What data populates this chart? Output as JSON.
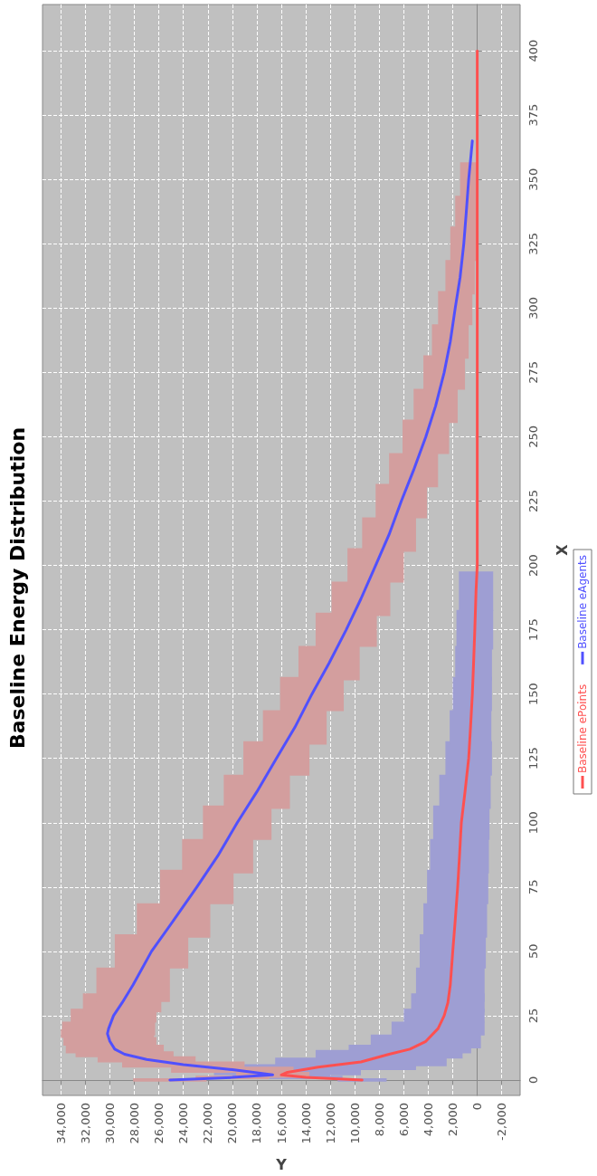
{
  "chart_data": {
    "type": "line",
    "title": "Baseline Energy Distribution",
    "xlabel": "Y",
    "ylabel": "X",
    "xlim": [
      35500,
      -3500
    ],
    "ylim": [
      -6,
      418
    ],
    "xticks": [
      {
        "value": 34000,
        "label": "34,000"
      },
      {
        "value": 32000,
        "label": "32,000"
      },
      {
        "value": 30000,
        "label": "30,000"
      },
      {
        "value": 28000,
        "label": "28,000"
      },
      {
        "value": 26000,
        "label": "26,000"
      },
      {
        "value": 24000,
        "label": "24,000"
      },
      {
        "value": 22000,
        "label": "22,000"
      },
      {
        "value": 20000,
        "label": "20,000"
      },
      {
        "value": 18000,
        "label": "18,000"
      },
      {
        "value": 16000,
        "label": "16,000"
      },
      {
        "value": 14000,
        "label": "14,000"
      },
      {
        "value": 12000,
        "label": "12,000"
      },
      {
        "value": 10000,
        "label": "10,000"
      },
      {
        "value": 8000,
        "label": "8,000"
      },
      {
        "value": 6000,
        "label": "6,000"
      },
      {
        "value": 4000,
        "label": "4,000"
      },
      {
        "value": 2000,
        "label": "2,000"
      },
      0,
      {
        "value": -2000,
        "label": "-2,000"
      }
    ],
    "yticks": [
      0,
      25,
      50,
      75,
      100,
      125,
      150,
      175,
      200,
      225,
      250,
      275,
      300,
      325,
      350,
      375,
      400
    ],
    "grid": true,
    "legend": "right",
    "marker": "none",
    "line_style": "solid",
    "series": [
      {
        "name": "Baseline ePoints",
        "color": "#ff5050",
        "values": [
          0,
          1,
          2,
          3,
          5,
          7,
          10,
          12,
          15,
          20,
          25,
          30,
          37,
          50,
          62,
          75,
          87,
          100,
          112,
          125,
          137,
          150,
          162,
          175,
          190,
          200,
          250,
          300,
          350,
          400
        ],
        "x": [
          9400,
          14000,
          16000,
          15500,
          13000,
          9500,
          7200,
          5500,
          4200,
          3200,
          2700,
          2400,
          2200,
          2000,
          1800,
          1600,
          1450,
          1300,
          1000,
          700,
          550,
          400,
          300,
          200,
          100,
          0,
          0,
          0,
          0,
          0
        ],
        "xerrors": [
          [
            7400,
            11400
          ],
          [
            11000,
            17000
          ],
          [
            12000,
            20000
          ],
          [
            9500,
            21500
          ],
          [
            5000,
            21000
          ],
          [
            2500,
            16500
          ],
          [
            1200,
            13200
          ],
          [
            500,
            10500
          ],
          [
            -300,
            8700
          ],
          [
            -600,
            7000
          ],
          [
            -600,
            6000
          ],
          [
            -600,
            5400
          ],
          [
            -600,
            5000
          ],
          [
            -700,
            4700
          ],
          [
            -800,
            4400
          ],
          [
            -900,
            4100
          ],
          [
            -950,
            3850
          ],
          [
            -1000,
            3600
          ],
          [
            -1100,
            3100
          ],
          [
            -1200,
            2600
          ],
          [
            -1150,
            2250
          ],
          [
            -1200,
            2000
          ],
          [
            -1200,
            1800
          ],
          [
            -1300,
            1700
          ],
          [
            -1300,
            1500
          ],
          null,
          null,
          null,
          null,
          null
        ]
      },
      {
        "name": "Baseline eAgents",
        "color": "#5050ff",
        "values": [
          0,
          1,
          2,
          4,
          6,
          8,
          10,
          12,
          15,
          18,
          20,
          25,
          30,
          37,
          50,
          62,
          75,
          87,
          100,
          112,
          125,
          137,
          150,
          162,
          175,
          187,
          200,
          212,
          225,
          237,
          250,
          262,
          275,
          287,
          300,
          312,
          325,
          337,
          350,
          365
        ],
        "x": [
          25100,
          20000,
          16700,
          20000,
          24000,
          27000,
          28800,
          29600,
          30000,
          30200,
          30100,
          29700,
          29000,
          28100,
          26600,
          24800,
          22900,
          21200,
          19600,
          18000,
          16400,
          14900,
          13500,
          12100,
          10700,
          9500,
          8300,
          7200,
          6200,
          5200,
          4200,
          3400,
          2700,
          2200,
          1800,
          1400,
          1100,
          900,
          700,
          400
        ],
        "xerrors": [
          [
            22100,
            28100
          ],
          [
            17000,
            23000
          ],
          [
            13700,
            19700
          ],
          [
            15000,
            25000
          ],
          [
            19000,
            29000
          ],
          [
            23000,
            31000
          ],
          [
            24800,
            32800
          ],
          [
            25600,
            33600
          ],
          [
            26200,
            33800
          ],
          [
            26400,
            34000
          ],
          [
            26300,
            33900
          ],
          [
            26200,
            33200
          ],
          [
            25800,
            32200
          ],
          [
            25100,
            31100
          ],
          [
            23600,
            29600
          ],
          [
            21800,
            27800
          ],
          [
            19900,
            25900
          ],
          [
            18300,
            24100
          ],
          [
            16800,
            22400
          ],
          [
            15300,
            20700
          ],
          [
            13700,
            19100
          ],
          [
            12300,
            17500
          ],
          [
            10900,
            16100
          ],
          [
            9600,
            14600
          ],
          [
            8200,
            13200
          ],
          [
            7100,
            11900
          ],
          [
            6000,
            10600
          ],
          [
            5000,
            9400
          ],
          [
            4100,
            8300
          ],
          [
            3200,
            7200
          ],
          [
            2300,
            6100
          ],
          [
            1600,
            5200
          ],
          [
            1000,
            4400
          ],
          [
            700,
            3700
          ],
          [
            400,
            3200
          ],
          [
            200,
            2600
          ],
          [
            0,
            2200
          ],
          [
            0,
            1800
          ],
          [
            0,
            1400
          ],
          null
        ]
      }
    ]
  }
}
